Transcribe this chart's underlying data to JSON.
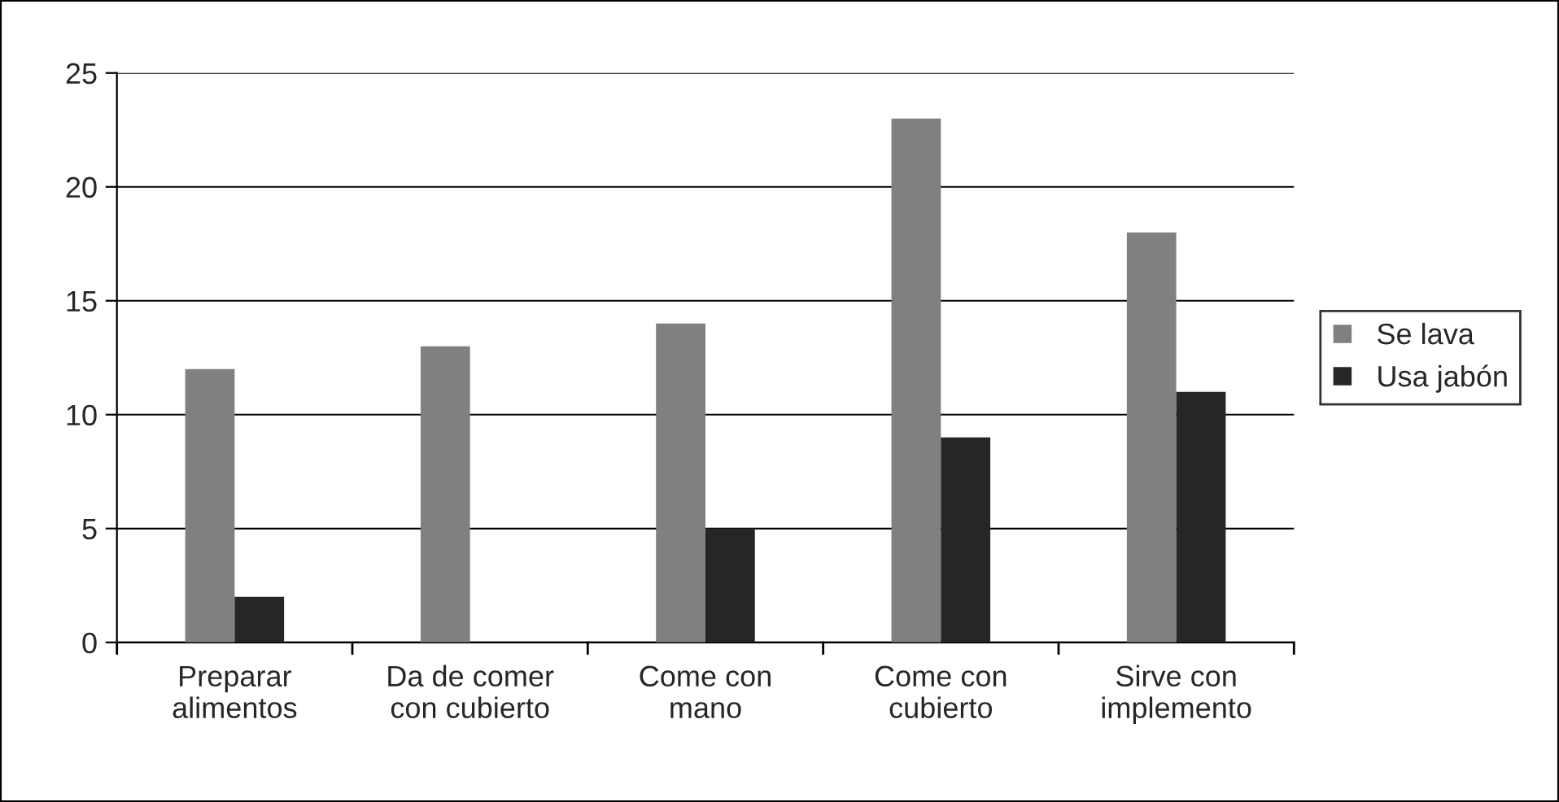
{
  "chart_data": {
    "type": "bar",
    "categories": [
      "Preparar\nalimentos",
      "Da de comer\ncon cubierto",
      "Come con\nmano",
      "Come con\ncubierto",
      "Sirve con\nimplemento"
    ],
    "series": [
      {
        "name": "Se lava",
        "color": "#808080",
        "values": [
          12,
          13,
          14,
          23,
          18
        ]
      },
      {
        "name": "Usa jabón",
        "color": "#262626",
        "values": [
          2,
          0,
          5,
          9,
          11
        ]
      }
    ],
    "ylim": [
      0,
      25
    ],
    "yticks": [
      0,
      5,
      10,
      15,
      20,
      25
    ],
    "grid": "y",
    "legend": "right"
  }
}
